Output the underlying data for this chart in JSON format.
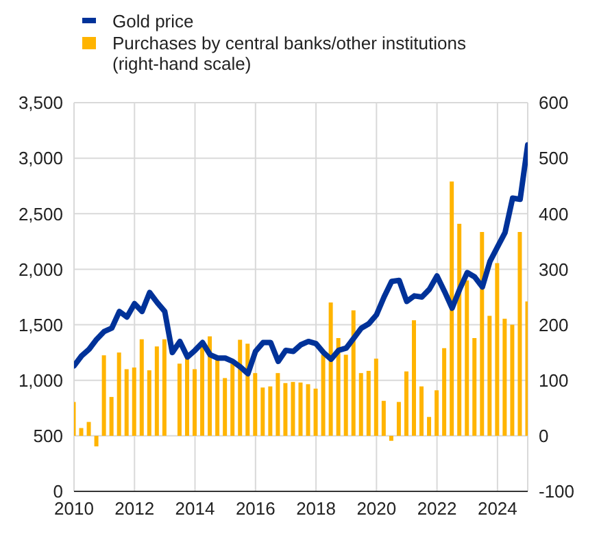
{
  "chart_data": {
    "type": "line",
    "legend": "top left",
    "grid": true,
    "x": [
      2010,
      2010.25,
      2010.5,
      2010.75,
      2011,
      2011.25,
      2011.5,
      2011.75,
      2012,
      2012.25,
      2012.5,
      2012.75,
      2013,
      2013.25,
      2013.5,
      2013.75,
      2014,
      2014.25,
      2014.5,
      2014.75,
      2015,
      2015.25,
      2015.5,
      2015.75,
      2016,
      2016.25,
      2016.5,
      2016.75,
      2017,
      2017.25,
      2017.5,
      2017.75,
      2018,
      2018.25,
      2018.5,
      2018.75,
      2019,
      2019.25,
      2019.5,
      2019.75,
      2020,
      2020.25,
      2020.5,
      2020.75,
      2021,
      2021.25,
      2021.5,
      2021.75,
      2022,
      2022.25,
      2022.5,
      2022.75,
      2023,
      2023.25,
      2023.5,
      2023.75,
      2024,
      2024.25,
      2024.5,
      2024.75,
      2025
    ],
    "xlim": [
      2010,
      2025
    ],
    "xticks": [
      2010,
      2012,
      2014,
      2016,
      2018,
      2020,
      2022,
      2024
    ],
    "ylim": [
      0,
      3500
    ],
    "yticks": [
      0,
      {
        "value": 500,
        "label": "500"
      },
      {
        "value": 1000,
        "label": "1,000"
      },
      {
        "value": 1500,
        "label": "1,500"
      },
      {
        "value": 2000,
        "label": "2,000"
      },
      {
        "value": 2500,
        "label": "2,500"
      },
      {
        "value": 3000,
        "label": "3,000"
      },
      {
        "value": 3500,
        "label": "3,500"
      }
    ],
    "y2lim": [
      -100,
      600
    ],
    "y2ticks": [
      -100,
      0,
      100,
      200,
      300,
      400,
      500,
      600
    ],
    "series": [
      {
        "name": "Gold price",
        "color": "#003299",
        "values": [
          1130,
          1220,
          1280,
          1370,
          1440,
          1470,
          1620,
          1570,
          1690,
          1620,
          1790,
          1700,
          1620,
          1250,
          1350,
          1210,
          1270,
          1340,
          1230,
          1200,
          1200,
          1170,
          1120,
          1060,
          1260,
          1340,
          1340,
          1170,
          1270,
          1260,
          1320,
          1350,
          1330,
          1250,
          1190,
          1270,
          1290,
          1380,
          1470,
          1510,
          1590,
          1750,
          1890,
          1900,
          1710,
          1760,
          1750,
          1820,
          1940,
          1800,
          1650,
          1820,
          1970,
          1930,
          1840,
          2070,
          2200,
          2330,
          2640,
          2630,
          3120
        ]
      },
      {
        "name": "Purchases by central banks/other institutions\n(right-hand scale)",
        "type": "bar",
        "axis": "y2",
        "color": "#ffb400",
        "values": [
          61,
          14,
          25,
          -19,
          145,
          70,
          150,
          120,
          123,
          174,
          118,
          161,
          174,
          null,
          130,
          143,
          120,
          160,
          179,
          139,
          104,
          130,
          173,
          166,
          113,
          87,
          89,
          113,
          95,
          97,
          96,
          93,
          85,
          146,
          240,
          176,
          146,
          226,
          113,
          117,
          139,
          63,
          -9,
          61,
          116,
          208,
          89,
          34,
          82,
          158,
          458,
          382,
          280,
          176,
          367,
          216,
          311,
          211,
          200,
          367,
          242
        ]
      }
    ]
  }
}
